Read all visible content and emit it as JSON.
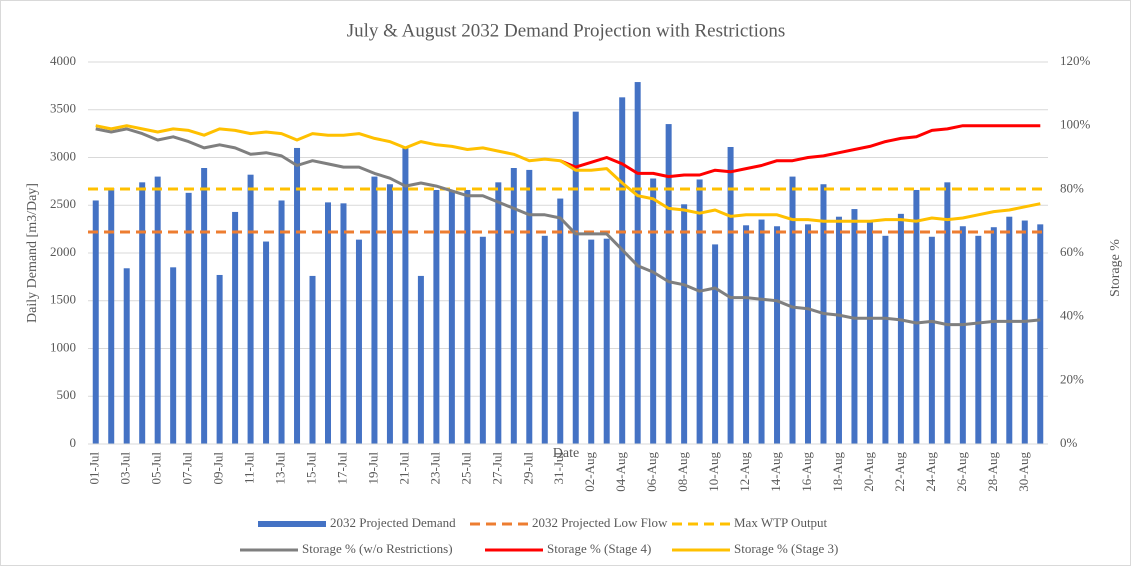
{
  "chart_data": {
    "type": "bar_line_combo",
    "title": "July & August 2032 Demand Projection with Restrictions",
    "x_label": "Date",
    "y_label": "Daily Demand [m3/Day]",
    "y2_label": "Storage %",
    "categories": [
      "01-Jul",
      null,
      "03-Jul",
      null,
      "05-Jul",
      null,
      "07-Jul",
      null,
      "09-Jul",
      null,
      "11-Jul",
      null,
      "13-Jul",
      null,
      "15-Jul",
      null,
      "17-Jul",
      null,
      "19-Jul",
      null,
      "21-Jul",
      null,
      "23-Jul",
      null,
      "25-Jul",
      null,
      "27-Jul",
      null,
      "29-Jul",
      null,
      "31-Jul",
      null,
      "02-Aug",
      null,
      "04-Aug",
      null,
      "06-Aug",
      null,
      "08-Aug",
      null,
      "10-Aug",
      null,
      "12-Aug",
      null,
      "14-Aug",
      null,
      "16-Aug",
      null,
      "18-Aug",
      null,
      "20-Aug",
      null,
      "22-Aug",
      null,
      "24-Aug",
      null,
      "26-Aug",
      null,
      "28-Aug",
      null,
      "30-Aug",
      null
    ],
    "ylim": [
      0,
      4000
    ],
    "yticks": [
      0,
      500,
      1000,
      1500,
      2000,
      2500,
      3000,
      3500,
      4000
    ],
    "y2lim": [
      0,
      120
    ],
    "y2ticks": [
      {
        "value": 0,
        "label": "0%"
      },
      {
        "value": 20,
        "label": "20%"
      },
      {
        "value": 40,
        "label": "40%"
      },
      {
        "value": 60,
        "label": "60%"
      },
      {
        "value": 80,
        "label": "80%"
      },
      {
        "value": 100,
        "label": "100%"
      },
      {
        "value": 120,
        "label": "120%"
      }
    ],
    "series": [
      {
        "name": "2032 Projected Demand",
        "type": "bar",
        "color": "#4472c4",
        "values": [
          2550,
          2680,
          1840,
          2740,
          2800,
          1850,
          2630,
          2890,
          1770,
          2430,
          2820,
          2120,
          2550,
          3100,
          1760,
          2530,
          2520,
          2140,
          2800,
          2720,
          3110,
          1760,
          2660,
          2650,
          2660,
          2170,
          2740,
          2890,
          2870,
          2180,
          2570,
          3480,
          2140,
          2150,
          3630,
          3790,
          2780,
          3350,
          2510,
          2770,
          2090,
          3110,
          2290,
          2350,
          2280,
          2800,
          2300,
          2720,
          2380,
          2460,
          2340,
          2180,
          2410,
          2660,
          2170,
          2740,
          2280,
          2180,
          2270,
          2380,
          2340,
          2300
        ]
      },
      {
        "name": "Storage % (w/o Restrictions)",
        "type": "line",
        "axis": "y2",
        "color": "#7f7f7f",
        "values": [
          99,
          98,
          99,
          97.5,
          95.5,
          96.5,
          95,
          93,
          94,
          93,
          91,
          91.5,
          90.5,
          87.5,
          89,
          88,
          87,
          87,
          85,
          83.5,
          81,
          82,
          81,
          79.5,
          78,
          78,
          76,
          74,
          72,
          72,
          71,
          66,
          66,
          66,
          61,
          56,
          54,
          51,
          50,
          48,
          49,
          46,
          46,
          45.5,
          45,
          43,
          42.5,
          41,
          40.5,
          39.5,
          39.5,
          39.5,
          39,
          38,
          38.5,
          37.5,
          37.5,
          38,
          38.5,
          38.5,
          38.5,
          39
        ]
      },
      {
        "name": "Storage % (Stage 4)",
        "type": "line",
        "axis": "y2",
        "color": "#ff0000",
        "values": [
          null,
          null,
          null,
          null,
          null,
          null,
          null,
          null,
          null,
          null,
          null,
          null,
          null,
          null,
          null,
          null,
          null,
          null,
          null,
          null,
          null,
          null,
          null,
          null,
          null,
          null,
          null,
          null,
          null,
          null,
          89,
          87,
          88.5,
          90,
          88,
          85,
          85,
          84,
          84.5,
          84.5,
          86,
          85.5,
          86.5,
          87.5,
          89,
          89,
          90,
          90.5,
          91.5,
          92.5,
          93.5,
          95,
          96,
          96.5,
          98.5,
          99,
          100,
          100,
          100,
          100,
          100,
          100
        ]
      },
      {
        "name": "Storage % (Stage 3)",
        "type": "line",
        "axis": "y2",
        "color": "#ffc000",
        "values": [
          100,
          99,
          100,
          99,
          98,
          99,
          98.5,
          97,
          99,
          98.5,
          97.5,
          98,
          97.5,
          95.5,
          97.5,
          97,
          97,
          97.5,
          96,
          95,
          93,
          95,
          94,
          93.5,
          92.5,
          93,
          92,
          91,
          89,
          89.5,
          89,
          86,
          86,
          86.5,
          82,
          78,
          77,
          74,
          73.5,
          72.5,
          73.5,
          71.5,
          72,
          72,
          72,
          70.5,
          70.5,
          70,
          70,
          70,
          70,
          70.5,
          70.5,
          70,
          71,
          70.5,
          71,
          72,
          73,
          73.5,
          74.5,
          75.5
        ]
      }
    ],
    "reference_lines": [
      {
        "name": "2032 Projected Low Flow",
        "color": "#ed7d31",
        "value": 2220
      },
      {
        "name": "Max WTP Output",
        "color": "#ffc000",
        "value": 2670
      }
    ]
  }
}
